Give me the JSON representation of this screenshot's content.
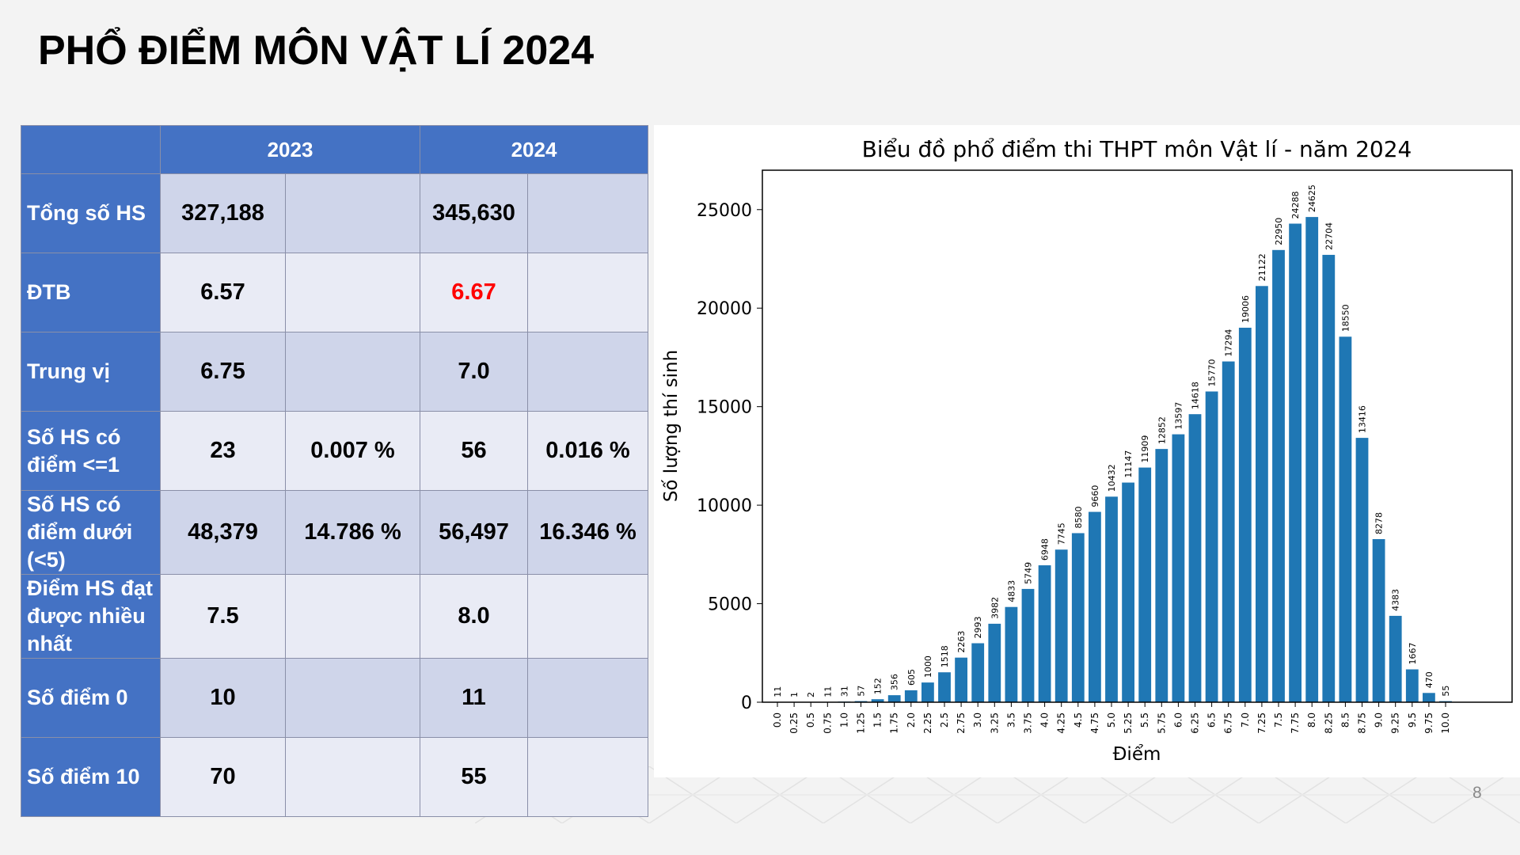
{
  "slide": {
    "title": "PHỔ ĐIỂM MÔN VẬT LÍ 2024",
    "page_number": "8"
  },
  "table": {
    "header": [
      "",
      "2023",
      "2024"
    ],
    "rows": [
      {
        "label": "Tổng số HS",
        "v2023": "327,188",
        "p2023": "",
        "v2024": "345,630",
        "p2024": ""
      },
      {
        "label": "ĐTB",
        "v2023": "6.57",
        "p2023": "",
        "v2024": "6.67",
        "p2024": ""
      },
      {
        "label": "Trung vị",
        "v2023": "6.75",
        "p2023": "",
        "v2024": "7.0",
        "p2024": ""
      },
      {
        "label": "Số HS có điểm <=1",
        "v2023": "23",
        "p2023": "0.007 %",
        "v2024": "56",
        "p2024": "0.016 %"
      },
      {
        "label": "Số HS có điểm dưới (<5)",
        "v2023": "48,379",
        "p2023": "14.786 %",
        "v2024": "56,497",
        "p2024": "16.346 %"
      },
      {
        "label": "Điểm HS đạt được nhiều nhất",
        "v2023": "7.5",
        "p2023": "",
        "v2024": "8.0",
        "p2024": ""
      },
      {
        "label": "Số điểm 0",
        "v2023": "10",
        "p2023": "",
        "v2024": "11",
        "p2024": ""
      },
      {
        "label": "Số điểm 10",
        "v2023": "70",
        "p2023": "",
        "v2024": "55",
        "p2024": ""
      }
    ],
    "highlight_color": "#ff0000",
    "header_color": "#4472c4"
  },
  "chart_data": {
    "type": "bar",
    "title": "Biểu đồ phổ điểm thi THPT môn Vật lí - năm 2024",
    "xlabel": "Điểm",
    "ylabel": "Số lượng thí sinh",
    "categories": [
      "0.0",
      "0.25",
      "0.5",
      "0.75",
      "1.0",
      "1.25",
      "1.5",
      "1.75",
      "2.0",
      "2.25",
      "2.5",
      "2.75",
      "3.0",
      "3.25",
      "3.5",
      "3.75",
      "4.0",
      "4.25",
      "4.5",
      "4.75",
      "5.0",
      "5.25",
      "5.5",
      "5.75",
      "6.0",
      "6.25",
      "6.5",
      "6.75",
      "7.0",
      "7.25",
      "7.5",
      "7.75",
      "8.0",
      "8.25",
      "8.5",
      "8.75",
      "9.0",
      "9.25",
      "9.5",
      "9.75",
      "10.0"
    ],
    "values": [
      11,
      1,
      2,
      11,
      31,
      57,
      152,
      356,
      605,
      1000,
      1518,
      2263,
      2993,
      3982,
      4833,
      5749,
      6948,
      7745,
      8580,
      9660,
      10432,
      11147,
      11909,
      12852,
      13597,
      14618,
      15770,
      17294,
      19006,
      21122,
      22950,
      24288,
      24625,
      22704,
      18550,
      13416,
      8278,
      4383,
      1667,
      470,
      55
    ],
    "yticks": [
      0,
      5000,
      10000,
      15000,
      20000,
      25000
    ],
    "ylim": [
      0,
      27000
    ],
    "bar_color": "#1f77b4",
    "grid": false,
    "legend": "none"
  }
}
